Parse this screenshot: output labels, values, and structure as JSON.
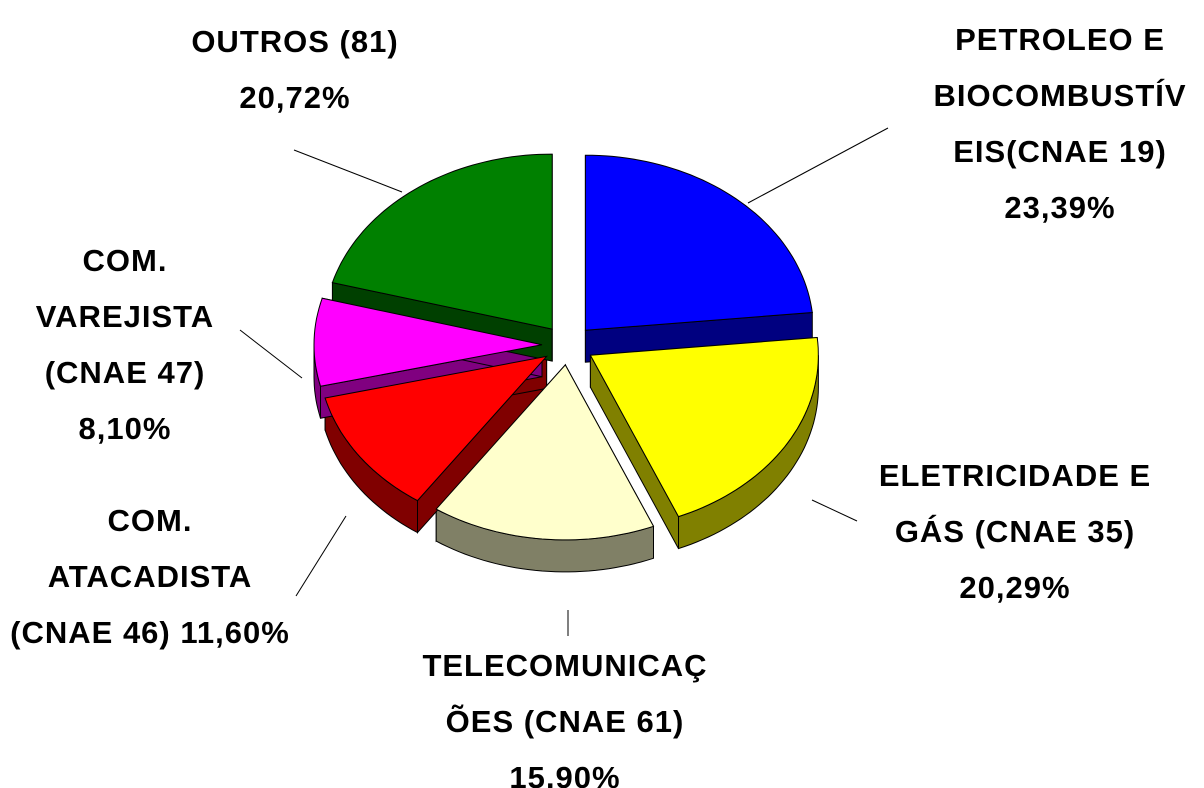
{
  "chart_data": {
    "type": "pie",
    "categories": [
      "PETROLEO E BIOCOMBUSTÍVEIS(CNAE 19)",
      "ELETRICIDADE E GÁS (CNAE 35)",
      "TELECOMUNICAÇÕES (CNAE 61)",
      "COM. ATACADISTA (CNAE 46)",
      "COM. VAREJISTA (CNAE 47)",
      "OUTROS (81)"
    ],
    "values": [
      23.39,
      20.29,
      15.9,
      11.6,
      8.1,
      20.72
    ],
    "value_labels": [
      "23,39%",
      "20,29%",
      "15,90%",
      "11,60%",
      "8,10%",
      "20,72%"
    ],
    "colors": [
      "#0000ff",
      "#ffff00",
      "#ffffcc",
      "#ff0000",
      "#ff00ff",
      "#008000"
    ],
    "side_colors": [
      "#000080",
      "#808000",
      "#808066",
      "#800000",
      "#800080",
      "#004000"
    ],
    "exploded": true,
    "three_d": true
  }
}
